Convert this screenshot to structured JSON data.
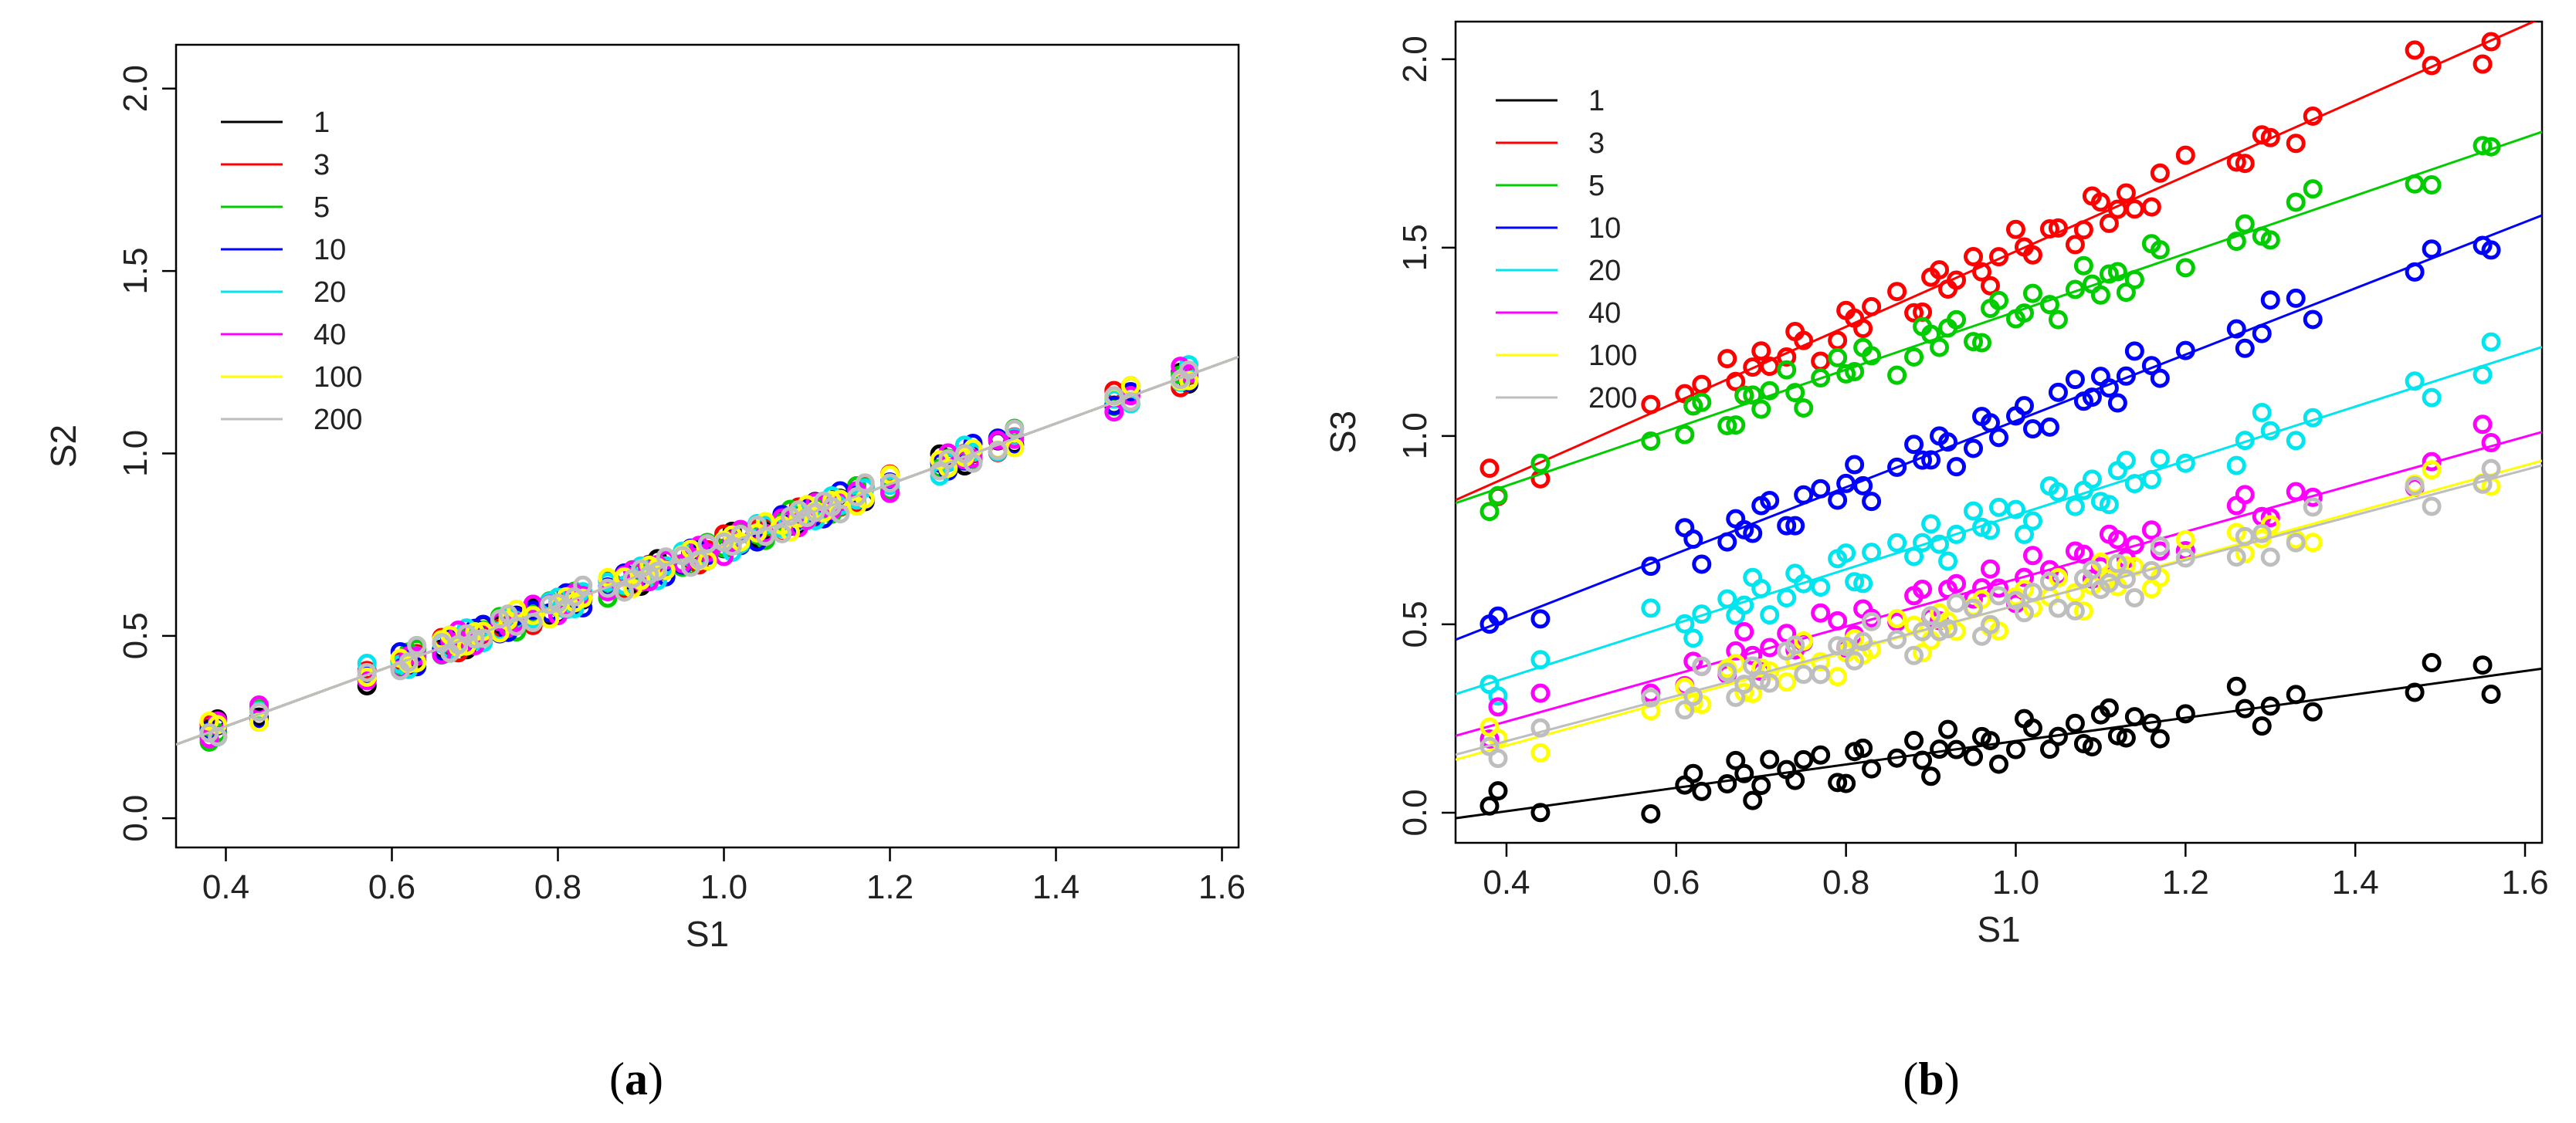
{
  "chart_data": [
    {
      "id": "a",
      "type": "scatter",
      "panel_label": "a",
      "xlabel": "S1",
      "ylabel": "S2",
      "xlim": [
        0.34,
        1.62
      ],
      "ylim": [
        -0.08,
        2.12
      ],
      "x_ticks": [
        0.4,
        0.6,
        0.8,
        1.0,
        1.2,
        1.4,
        1.6
      ],
      "x_tick_labels": [
        "0.4",
        "0.6",
        "0.8",
        "1.0",
        "1.2",
        "1.4",
        "1.6"
      ],
      "y_ticks": [
        0.0,
        0.5,
        1.0,
        1.5,
        2.0
      ],
      "y_tick_labels": [
        "0.0",
        "0.5",
        "1.0",
        "1.5",
        "2.0"
      ],
      "legend_position": "top-left",
      "legend": [
        "1",
        "3",
        "5",
        "10",
        "20",
        "40",
        "100",
        "200"
      ],
      "series": [
        {
          "name": "1",
          "color": "#000000",
          "slope": 0.83,
          "intercept": -0.08
        },
        {
          "name": "3",
          "color": "#ff0000",
          "slope": 0.83,
          "intercept": -0.08
        },
        {
          "name": "5",
          "color": "#00cc00",
          "slope": 0.83,
          "intercept": -0.08
        },
        {
          "name": "10",
          "color": "#0000ff",
          "slope": 0.83,
          "intercept": -0.08
        },
        {
          "name": "20",
          "color": "#00e5ee",
          "slope": 0.83,
          "intercept": -0.08
        },
        {
          "name": "40",
          "color": "#ff00ff",
          "slope": 0.83,
          "intercept": -0.08
        },
        {
          "name": "100",
          "color": "#ffff00",
          "slope": 0.83,
          "intercept": -0.08
        },
        {
          "name": "200",
          "color": "#bebebe",
          "slope": 0.83,
          "intercept": -0.08
        }
      ]
    },
    {
      "id": "b",
      "type": "scatter",
      "panel_label": "b",
      "xlabel": "S1",
      "ylabel": "S3",
      "xlim": [
        0.34,
        1.62
      ],
      "ylim": [
        -0.08,
        2.1
      ],
      "x_ticks": [
        0.4,
        0.6,
        0.8,
        1.0,
        1.2,
        1.4,
        1.6
      ],
      "x_tick_labels": [
        "0.4",
        "0.6",
        "0.8",
        "1.0",
        "1.2",
        "1.4",
        "1.6"
      ],
      "y_ticks": [
        0.0,
        0.5,
        1.0,
        1.5,
        2.0
      ],
      "y_tick_labels": [
        "0.0",
        "0.5",
        "1.0",
        "1.5",
        "2.0"
      ],
      "legend_position": "top-left",
      "legend": [
        "1",
        "3",
        "5",
        "10",
        "20",
        "40",
        "100",
        "200"
      ],
      "series": [
        {
          "name": "1",
          "color": "#000000",
          "slope": 0.31,
          "intercept": -0.12
        },
        {
          "name": "3",
          "color": "#ff0000",
          "slope": 1.0,
          "intercept": 0.49
        },
        {
          "name": "5",
          "color": "#00cc00",
          "slope": 0.77,
          "intercept": 0.56
        },
        {
          "name": "10",
          "color": "#0000ff",
          "slope": 0.88,
          "intercept": 0.16
        },
        {
          "name": "20",
          "color": "#00e5ee",
          "slope": 0.72,
          "intercept": 0.07
        },
        {
          "name": "40",
          "color": "#ff00ff",
          "slope": 0.63,
          "intercept": -0.01
        },
        {
          "name": "100",
          "color": "#ffff00",
          "slope": 0.62,
          "intercept": -0.07
        },
        {
          "name": "200",
          "color": "#bebebe",
          "slope": 0.6,
          "intercept": -0.05
        }
      ]
    }
  ],
  "s1_samples": [
    0.38,
    0.39,
    0.44,
    0.57,
    0.61,
    0.62,
    0.63,
    0.66,
    0.67,
    0.68,
    0.69,
    0.7,
    0.71,
    0.73,
    0.74,
    0.75,
    0.77,
    0.79,
    0.8,
    0.81,
    0.82,
    0.83,
    0.86,
    0.88,
    0.89,
    0.9,
    0.91,
    0.92,
    0.93,
    0.95,
    0.96,
    0.97,
    0.98,
    1.0,
    1.01,
    1.02,
    1.04,
    1.05,
    1.07,
    1.08,
    1.09,
    1.1,
    1.11,
    1.12,
    1.13,
    1.14,
    1.16,
    1.17,
    1.2,
    1.26,
    1.27,
    1.29,
    1.3,
    1.33,
    1.35,
    1.47,
    1.49,
    1.55,
    1.56
  ]
}
